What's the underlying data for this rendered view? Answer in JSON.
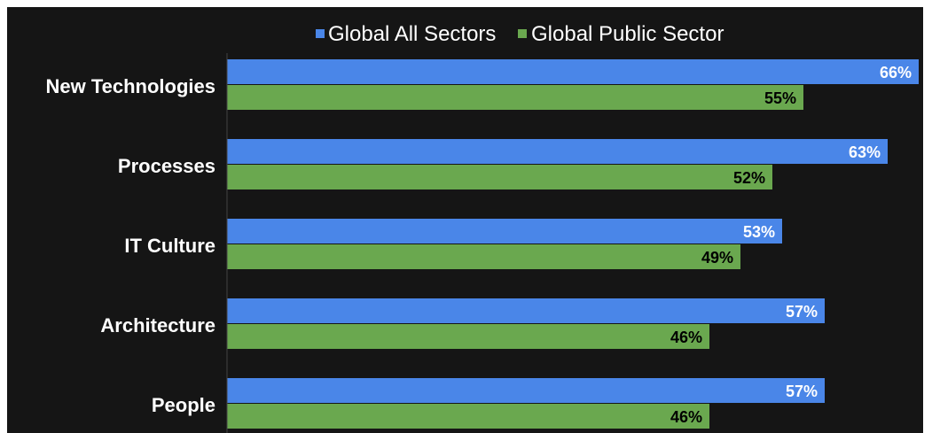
{
  "colors": {
    "background": "#151515",
    "page": "#ffffff",
    "axis": "#444444",
    "series_all": "#4a86e8",
    "series_public": "#6aa84f",
    "label_text": "#ffffff",
    "value_text_on_blue": "#ffffff",
    "value_text_on_green": "#000000"
  },
  "chart_data": {
    "type": "bar",
    "orientation": "horizontal",
    "title": "",
    "xlabel": "",
    "ylabel": "",
    "categories": [
      "New Technologies",
      "Processes",
      "IT Culture",
      "Architecture",
      "People"
    ],
    "series": [
      {
        "name": "Global All Sectors",
        "values": [
          66,
          63,
          53,
          57,
          57
        ],
        "labels": [
          "66%",
          "63%",
          "53%",
          "57%",
          "57%"
        ]
      },
      {
        "name": "Global Public Sector",
        "values": [
          55,
          52,
          49,
          46,
          46
        ],
        "labels": [
          "55%",
          "52%",
          "49%",
          "46%",
          "46%"
        ]
      }
    ],
    "xlim": [
      0,
      66
    ],
    "grid": false,
    "legend": "top"
  }
}
